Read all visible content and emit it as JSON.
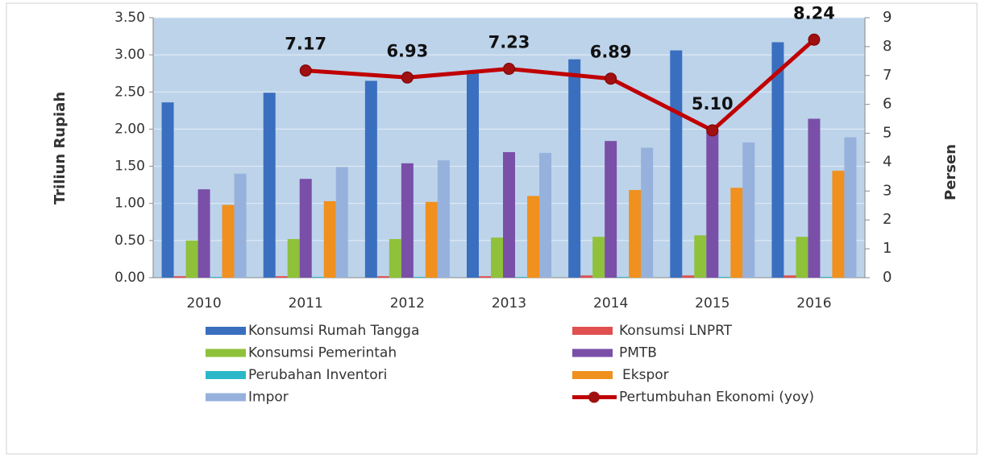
{
  "chart_data": {
    "type": "bar",
    "ylabel": "Triliun Rupiah",
    "y2label": "Persen",
    "categories": [
      "2010",
      "2011",
      "2012",
      "2013",
      "2014",
      "2015",
      "2016"
    ],
    "series": [
      {
        "name": "Konsumsi Rumah Tangga",
        "color": "#3a6fc0",
        "values": [
          2.36,
          2.49,
          2.65,
          2.77,
          2.94,
          3.06,
          3.17
        ]
      },
      {
        "name": "Konsumsi LNPRT",
        "color": "#e05050",
        "values": [
          0.02,
          0.02,
          0.02,
          0.02,
          0.03,
          0.03,
          0.03
        ]
      },
      {
        "name": "Konsumsi Pemerintah",
        "color": "#8fc13a",
        "values": [
          0.5,
          0.52,
          0.52,
          0.54,
          0.55,
          0.57,
          0.55
        ]
      },
      {
        "name": "PMTB",
        "color": "#7a4fa8",
        "values": [
          1.19,
          1.33,
          1.54,
          1.69,
          1.84,
          1.98,
          2.14
        ]
      },
      {
        "name": "Perubahan Inventori",
        "color": "#2bb8c8",
        "values": [
          0.01,
          0.01,
          0.01,
          0.01,
          0.01,
          0.01,
          0.01
        ]
      },
      {
        "name": "Ekspor",
        "color": "#f0901e",
        "values": [
          0.98,
          1.03,
          1.02,
          1.1,
          1.18,
          1.21,
          1.44
        ]
      },
      {
        "name": "Impor",
        "color": "#96b1dc",
        "values": [
          1.4,
          1.49,
          1.58,
          1.68,
          1.75,
          1.82,
          1.89
        ]
      },
      {
        "name": "Pertumbuhan Ekonomi (yoy)",
        "color": "#c00000",
        "axis": "y2",
        "values": [
          null,
          7.17,
          6.93,
          7.23,
          6.89,
          5.1,
          8.24
        ],
        "value_labels": [
          null,
          "7.17",
          "6.93",
          "7.23",
          "6.89",
          "5.10",
          "8.24"
        ]
      }
    ],
    "ylim": [
      0,
      3.5
    ],
    "yticks": [
      {
        "value": 0,
        "label": "0.00"
      },
      {
        "value": 0.5,
        "label": "0.50"
      },
      {
        "value": 1,
        "label": "1.00"
      },
      {
        "value": 1.5,
        "label": "1.50"
      },
      {
        "value": 2,
        "label": "2.00"
      },
      {
        "value": 2.5,
        "label": "2.50"
      },
      {
        "value": 3,
        "label": "3.00"
      },
      {
        "value": 3.5,
        "label": "3.50"
      }
    ],
    "y2lim": [
      0,
      9
    ],
    "y2ticks": [
      0,
      1,
      2,
      3,
      4,
      5,
      6,
      7,
      8,
      9
    ],
    "grid": true
  }
}
